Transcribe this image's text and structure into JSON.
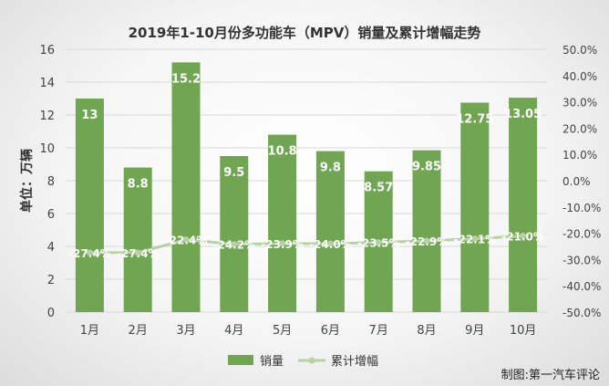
{
  "chart_data": {
    "type": "bar",
    "title": "2019年1-10月份多功能车（MPV）销量及累计增幅走势",
    "ylabel": "单位：万辆",
    "categories": [
      "1月",
      "2月",
      "3月",
      "4月",
      "5月",
      "6月",
      "7月",
      "8月",
      "9月",
      "10月"
    ],
    "series": [
      {
        "name": "销量",
        "type": "bar",
        "axis": "left",
        "values": [
          13,
          8.8,
          15.2,
          9.5,
          10.8,
          9.8,
          8.57,
          9.85,
          12.75,
          13.05
        ],
        "labels": [
          "13",
          "8.8",
          "15.2",
          "9.5",
          "10.8",
          "9.8",
          "8.57",
          "9.85",
          "12.75",
          "13.05"
        ]
      },
      {
        "name": "累计增幅",
        "type": "line",
        "axis": "right",
        "values": [
          -27.4,
          -27.4,
          -22.4,
          -24.2,
          -23.9,
          -24.0,
          -23.5,
          -22.9,
          -22.1,
          -21.0
        ],
        "labels": [
          "-27.4%",
          "-27.4%",
          "-22.4%",
          "-24.2%",
          "-23.9%",
          "-24.0%",
          "-23.5%",
          "-22.9%",
          "-22.1%",
          "-21.0%"
        ]
      }
    ],
    "y_left": {
      "min": 0,
      "max": 16,
      "step": 2,
      "ticks": [
        "0",
        "2",
        "4",
        "6",
        "8",
        "10",
        "12",
        "14",
        "16"
      ]
    },
    "y_right": {
      "min": -50,
      "max": 50,
      "step": 10,
      "ticks": [
        "-50.0%",
        "-40.0%",
        "-30.0%",
        "-20.0%",
        "-10.0%",
        "0.0%",
        "10.0%",
        "20.0%",
        "30.0%",
        "40.0%",
        "50.0%"
      ]
    },
    "grid": true,
    "legend_position": "bottom",
    "colors": {
      "bar": "#70a552",
      "line": "#b5d3a2",
      "grid": "#d9d9d9",
      "label": "#ffffff",
      "axis_text": "#444444"
    }
  },
  "credit": "制图:第一汽车评论"
}
